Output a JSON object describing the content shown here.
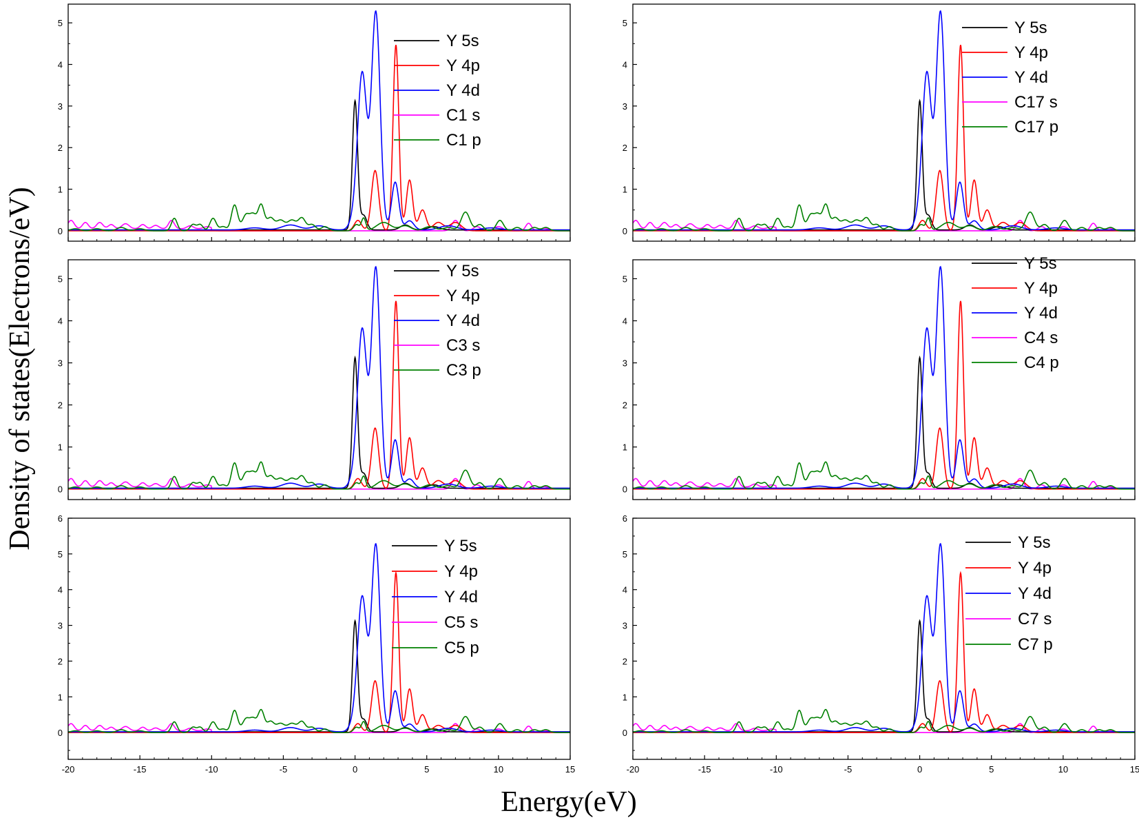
{
  "figure": {
    "ylabel": "Density of states(Electrons/eV)",
    "xlabel": "Energy(eV)"
  },
  "series_colors": {
    "s5": "#000000",
    "p4": "#ff0000",
    "d4": "#0000ff",
    "cs": "#ff00ff",
    "cp": "#008000"
  },
  "chart_data": [
    {
      "type": "line",
      "panel": "top-left",
      "xlim": [
        -20,
        15
      ],
      "ylim": [
        -0.25,
        5.45
      ],
      "xticks": [],
      "yticks": [
        0,
        1,
        2,
        3,
        4,
        5
      ],
      "legend": [
        "Y 5s",
        "Y 4p",
        "Y 4d",
        "C1 s",
        "C1 p"
      ],
      "legend_placement": "top-right"
    },
    {
      "type": "line",
      "panel": "top-right",
      "xlim": [
        -20,
        15
      ],
      "ylim": [
        -0.25,
        5.45
      ],
      "xticks": [],
      "yticks": [
        0,
        1,
        2,
        3,
        4,
        5
      ],
      "legend": [
        "Y 5s",
        "Y 4p",
        "Y 4d",
        "C17 s",
        "C17 p"
      ],
      "legend_placement": "top-right"
    },
    {
      "type": "line",
      "panel": "middle-left",
      "xlim": [
        -20,
        15
      ],
      "ylim": [
        -0.25,
        5.45
      ],
      "xticks": [],
      "yticks": [
        0,
        1,
        2,
        3,
        4,
        5
      ],
      "legend": [
        "Y 5s",
        "Y 4p",
        "Y 4d",
        "C3 s",
        "C3 p"
      ],
      "legend_placement": "top-right"
    },
    {
      "type": "line",
      "panel": "middle-right",
      "xlim": [
        -20,
        15
      ],
      "ylim": [
        -0.25,
        5.45
      ],
      "xticks": [],
      "yticks": [
        0,
        1,
        2,
        3,
        4,
        5
      ],
      "legend": [
        "Y 5s",
        "Y 4p",
        "Y 4d",
        "C4 s",
        "C4 p"
      ],
      "legend_placement": "top-right"
    },
    {
      "type": "line",
      "panel": "bottom-left",
      "xlim": [
        -20,
        15
      ],
      "ylim": [
        -0.75,
        6
      ],
      "xticks": [
        -20,
        -15,
        -10,
        -5,
        0,
        5,
        10,
        15
      ],
      "yticks": [
        0,
        1,
        2,
        3,
        4,
        5,
        6
      ],
      "legend": [
        "Y 5s",
        "Y 4p",
        "Y 4d",
        "C5 s",
        "C5 p"
      ],
      "legend_placement": "right"
    },
    {
      "type": "line",
      "panel": "bottom-right",
      "xlim": [
        -20,
        15
      ],
      "ylim": [
        -0.75,
        6
      ],
      "xticks": [
        -20,
        -15,
        -10,
        -5,
        0,
        5,
        10,
        15
      ],
      "yticks": [
        0,
        1,
        2,
        3,
        4,
        5,
        6
      ],
      "legend": [
        "Y 5s",
        "Y 4p",
        "Y 4d",
        "C7 s",
        "C7 p"
      ],
      "legend_placement": "right"
    }
  ],
  "pdos_peaks": {
    "s5": [
      [
        0,
        3.1,
        0.18
      ],
      [
        0.6,
        0.35,
        0.22
      ],
      [
        3.5,
        0.12,
        0.35
      ],
      [
        5.5,
        0.08,
        0.4
      ]
    ],
    "p4": [
      [
        0.2,
        0.25,
        0.25
      ],
      [
        1.4,
        1.45,
        0.25
      ],
      [
        2.85,
        4.47,
        0.2
      ],
      [
        3.8,
        1.22,
        0.22
      ],
      [
        4.7,
        0.5,
        0.25
      ],
      [
        5.8,
        0.2,
        0.35
      ],
      [
        7.0,
        0.2,
        0.4
      ]
    ],
    "d4": [
      [
        -0.1,
        0.2,
        0.3
      ],
      [
        0.5,
        3.75,
        0.32
      ],
      [
        1.45,
        5.22,
        0.3
      ],
      [
        2.8,
        1.15,
        0.25
      ],
      [
        3.8,
        0.22,
        0.3
      ],
      [
        -4.5,
        0.12,
        0.6
      ],
      [
        -2.5,
        0.1,
        0.5
      ],
      [
        -7,
        0.05,
        0.6
      ],
      [
        6.5,
        0.1,
        0.6
      ],
      [
        9.5,
        0.05,
        0.6
      ]
    ],
    "cs": [
      [
        -19.8,
        0.2,
        0.22
      ],
      [
        -18.8,
        0.15,
        0.2
      ],
      [
        -17.8,
        0.15,
        0.22
      ],
      [
        -17.0,
        0.1,
        0.2
      ],
      [
        -16.0,
        0.12,
        0.25
      ],
      [
        -14.8,
        0.1,
        0.2
      ],
      [
        -13.9,
        0.08,
        0.22
      ],
      [
        -12.8,
        0.2,
        0.2
      ],
      [
        -11.5,
        0.07,
        0.22
      ],
      [
        -10.3,
        0.05,
        0.25
      ],
      [
        7.0,
        0.25,
        0.25
      ],
      [
        8.5,
        0.1,
        0.25
      ],
      [
        10.0,
        0.1,
        0.3
      ],
      [
        12.1,
        0.18,
        0.2
      ],
      [
        13.2,
        0.06,
        0.25
      ]
    ],
    "cp": [
      [
        -19.5,
        0.05,
        0.3
      ],
      [
        -18.0,
        0.05,
        0.3
      ],
      [
        -16.3,
        0.08,
        0.3
      ],
      [
        -15.0,
        0.05,
        0.3
      ],
      [
        -12.6,
        0.3,
        0.2
      ],
      [
        -11.3,
        0.15,
        0.2
      ],
      [
        -10.8,
        0.15,
        0.2
      ],
      [
        -9.9,
        0.3,
        0.22
      ],
      [
        -9.2,
        0.1,
        0.22
      ],
      [
        -8.4,
        0.62,
        0.22
      ],
      [
        -7.6,
        0.38,
        0.25
      ],
      [
        -7.1,
        0.35,
        0.22
      ],
      [
        -6.55,
        0.62,
        0.22
      ],
      [
        -5.9,
        0.3,
        0.25
      ],
      [
        -5.2,
        0.25,
        0.3
      ],
      [
        -4.4,
        0.25,
        0.3
      ],
      [
        -3.7,
        0.3,
        0.25
      ],
      [
        -3.0,
        0.15,
        0.25
      ],
      [
        -2.1,
        0.1,
        0.25
      ],
      [
        0.1,
        0.15,
        0.2
      ],
      [
        0.6,
        0.3,
        0.15
      ],
      [
        2.0,
        0.2,
        0.5
      ],
      [
        3.5,
        0.12,
        0.4
      ],
      [
        5.2,
        0.1,
        0.4
      ],
      [
        6.5,
        0.08,
        0.35
      ],
      [
        7.7,
        0.45,
        0.3
      ],
      [
        8.7,
        0.15,
        0.25
      ],
      [
        10.1,
        0.25,
        0.25
      ],
      [
        11.3,
        0.08,
        0.25
      ],
      [
        12.5,
        0.08,
        0.25
      ],
      [
        13.3,
        0.08,
        0.25
      ]
    ]
  }
}
